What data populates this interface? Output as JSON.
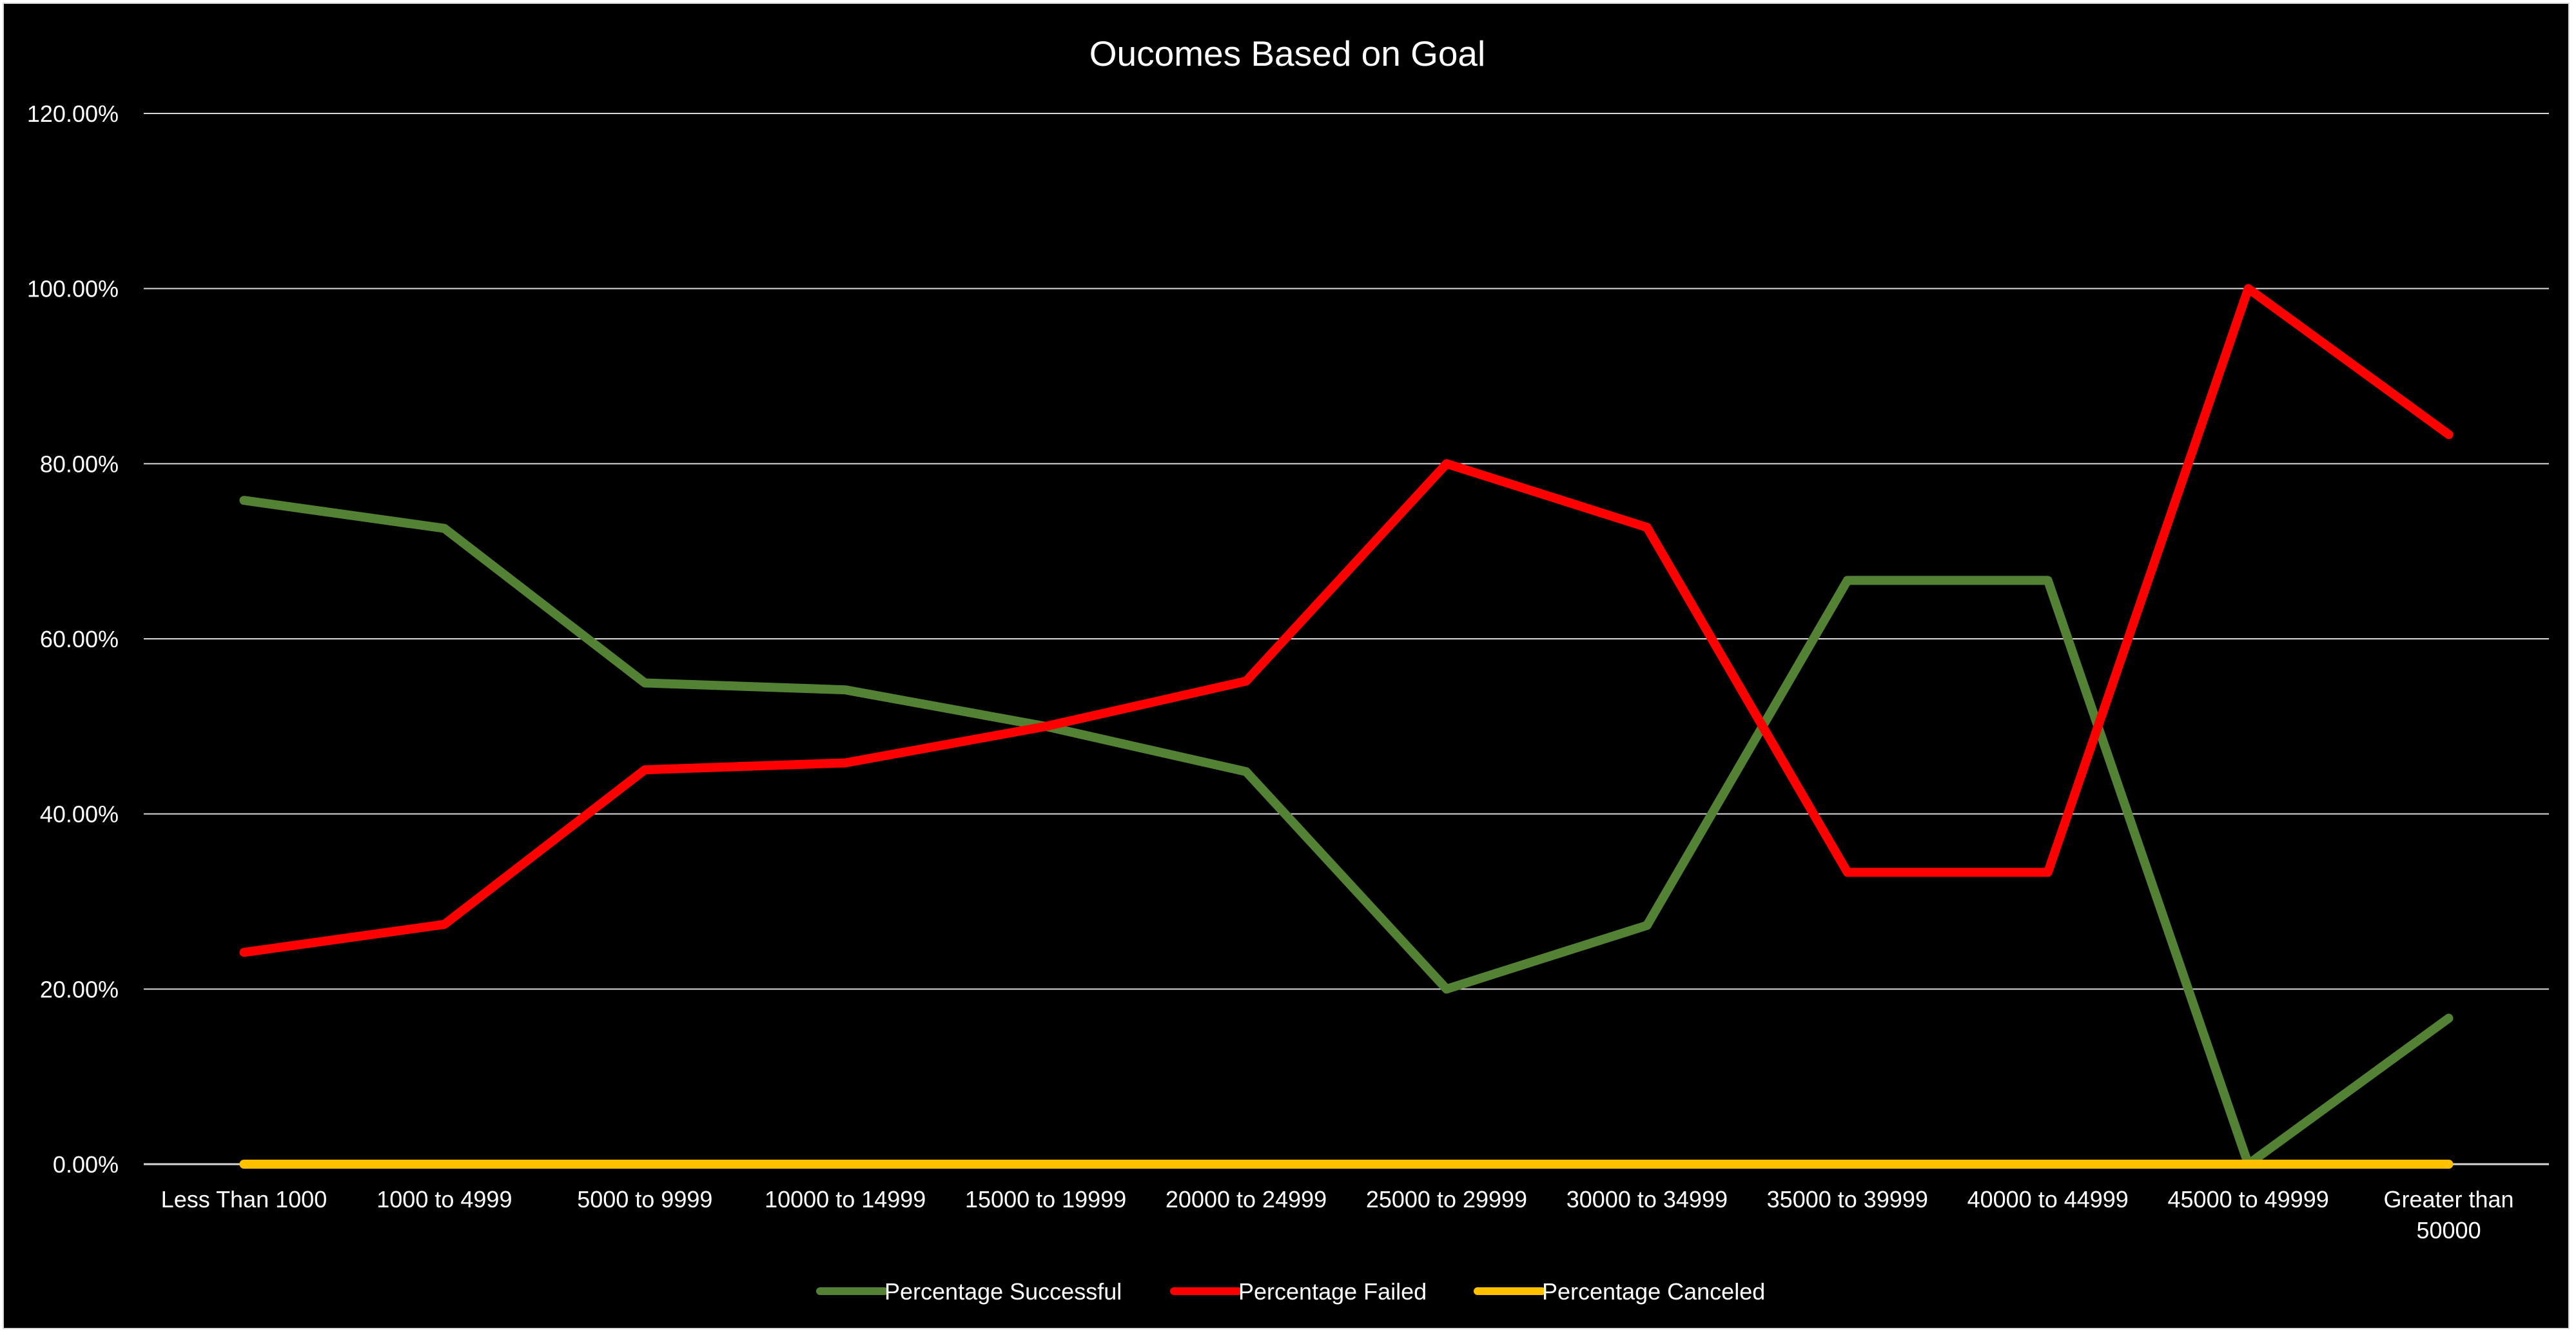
{
  "chart_data": {
    "type": "line",
    "title": "Oucomes Based on Goal",
    "xlabel": "",
    "ylabel": "",
    "categories": [
      "Less Than 1000",
      "1000 to 4999",
      "5000 to 9999",
      "10000 to 14999",
      "15000 to 19999",
      "20000 to 24999",
      "25000 to 29999",
      "30000 to 34999",
      "35000 to 39999",
      "40000 to 44999",
      "45000 to 49999",
      "Greater than 50000"
    ],
    "category_lines": [
      [
        "Less Than 1000"
      ],
      [
        "1000 to 4999"
      ],
      [
        "5000 to 9999"
      ],
      [
        "10000 to 14999"
      ],
      [
        "15000 to 19999"
      ],
      [
        "20000 to 24999"
      ],
      [
        "25000 to 29999"
      ],
      [
        "30000 to 34999"
      ],
      [
        "35000 to 39999"
      ],
      [
        "40000 to 44999"
      ],
      [
        "45000 to 49999"
      ],
      [
        "Greater than",
        "50000"
      ]
    ],
    "ylim": [
      0,
      120
    ],
    "yticks": [
      0,
      20,
      40,
      60,
      80,
      100,
      120
    ],
    "ytick_labels": [
      "0.00%",
      "20.00%",
      "40.00%",
      "60.00%",
      "80.00%",
      "100.00%",
      "120.00%"
    ],
    "grid": true,
    "legend_position": "bottom",
    "series": [
      {
        "name": "Percentage Successful",
        "color": "#548235",
        "values": [
          75.81,
          72.61,
          54.96,
          54.17,
          50.0,
          44.83,
          20.0,
          27.27,
          66.67,
          66.67,
          0.0,
          16.67
        ]
      },
      {
        "name": "Percentage Failed",
        "color": "#ff0000",
        "values": [
          24.19,
          27.39,
          45.04,
          45.83,
          50.0,
          55.17,
          80.0,
          72.73,
          33.33,
          33.33,
          100.0,
          83.33
        ]
      },
      {
        "name": "Percentage Canceled",
        "color": "#ffc000",
        "values": [
          0,
          0,
          0,
          0,
          0,
          0,
          0,
          0,
          0,
          0,
          0,
          0
        ]
      }
    ]
  }
}
